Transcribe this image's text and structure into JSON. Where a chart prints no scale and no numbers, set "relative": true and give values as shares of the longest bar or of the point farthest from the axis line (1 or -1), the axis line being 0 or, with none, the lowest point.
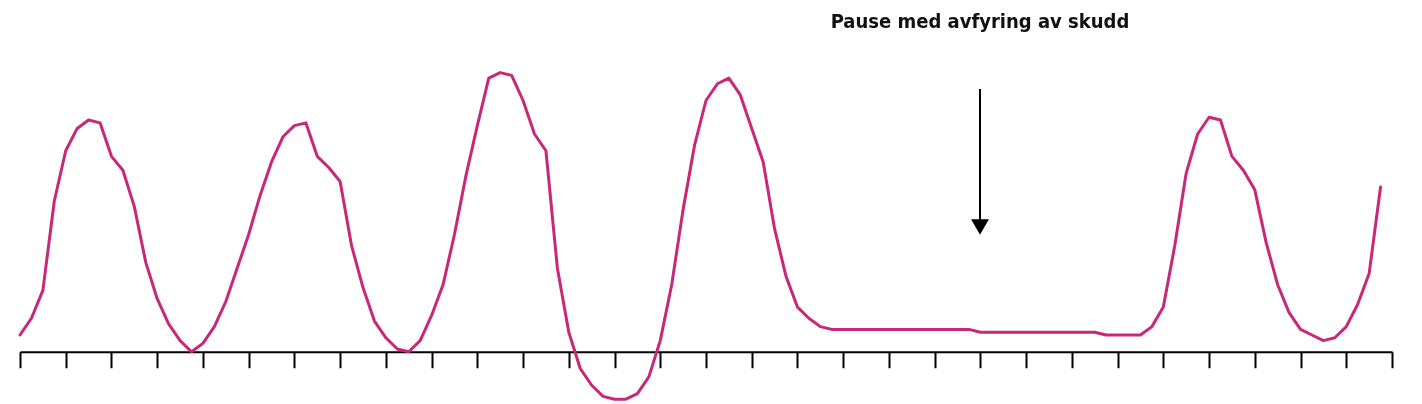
{
  "chart_data": {
    "type": "line",
    "relative": true,
    "color": "#c8277a",
    "categories": [
      null,
      null,
      null,
      null,
      null,
      null,
      null,
      null,
      null,
      null,
      null,
      null,
      null,
      null,
      null,
      null,
      null,
      null,
      null,
      null,
      null,
      null,
      null,
      null,
      null,
      null,
      null,
      null,
      null,
      null,
      null,
      null,
      null,
      null,
      null,
      null,
      null,
      null,
      null,
      null,
      null,
      null,
      null,
      null,
      null,
      null,
      null,
      null,
      null,
      null,
      null,
      null,
      null,
      null,
      null,
      null,
      null,
      null,
      null,
      null,
      null,
      null,
      null,
      null,
      null,
      null,
      null,
      null,
      null,
      null,
      null,
      null,
      null,
      null,
      null,
      null,
      null,
      null,
      null,
      null,
      null,
      null,
      null,
      null,
      null,
      null,
      null,
      null,
      null,
      null,
      null,
      null,
      null,
      null,
      null,
      null,
      null,
      null,
      null,
      null,
      null,
      null,
      null,
      null,
      null,
      null,
      null,
      null,
      null,
      null,
      null,
      null,
      null,
      null,
      null,
      null,
      null,
      null,
      null,
      null,
      null
    ],
    "values": [
      0.06,
      0.12,
      0.22,
      0.54,
      0.72,
      0.8,
      0.83,
      0.82,
      0.7,
      0.65,
      0.52,
      0.32,
      0.19,
      0.1,
      0.04,
      0,
      0.03,
      0.09,
      0.18,
      0.3,
      0.42,
      0.56,
      0.68,
      0.77,
      0.81,
      0.82,
      0.7,
      0.66,
      0.61,
      0.38,
      0.23,
      0.11,
      0.05,
      0.01,
      0,
      0.04,
      0.13,
      0.24,
      0.42,
      0.63,
      0.81,
      0.98,
      1,
      0.99,
      0.9,
      0.78,
      0.72,
      0.3,
      0.07,
      -0.06,
      -0.12,
      -0.16,
      -0.17,
      -0.17,
      -0.15,
      -0.09,
      0.04,
      0.24,
      0.51,
      0.74,
      0.9,
      0.96,
      0.98,
      0.92,
      0.8,
      0.68,
      0.44,
      0.27,
      0.16,
      0.12,
      0.09,
      0.08,
      0.08,
      0.08,
      0.08,
      0.08,
      0.08,
      0.08,
      0.08,
      0.08,
      0.08,
      0.08,
      0.08,
      0.08,
      0.07,
      0.07,
      0.07,
      0.07,
      0.07,
      0.07,
      0.07,
      0.07,
      0.07,
      0.07,
      0.07,
      0.06,
      0.06,
      0.06,
      0.06,
      0.09,
      0.16,
      0.38,
      0.64,
      0.78,
      0.84,
      0.83,
      0.7,
      0.65,
      0.58,
      0.39,
      0.24,
      0.14,
      0.08,
      0.06,
      0.04,
      0.05,
      0.09,
      0.17,
      0.28,
      0.59,
      null
    ],
    "annotations": [
      "Pause med avfyring av skudd"
    ]
  }
}
